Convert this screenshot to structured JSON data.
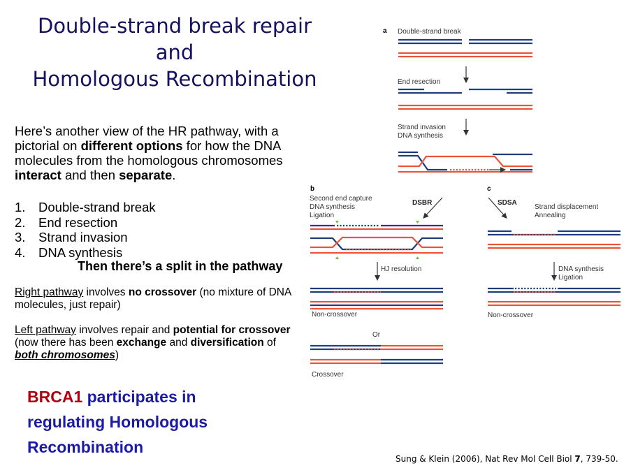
{
  "title_lines": [
    "Double-strand break repair",
    "and",
    "Homologous Recombination"
  ],
  "intro": {
    "t1": "Here’s another view of the HR pathway, with a pictorial on ",
    "b1": "different options",
    "t2": " for how the DNA molecules from the homologous chromosomes ",
    "b2": "interact",
    "t3": " and then ",
    "b3": "separate",
    "t4": "."
  },
  "steps": [
    {
      "num": "1.",
      "text": "Double-strand break"
    },
    {
      "num": "2.",
      "text": "End resection"
    },
    {
      "num": "3.",
      "text": "Strand invasion"
    },
    {
      "num": "4.",
      "text": "DNA synthesis"
    }
  ],
  "split_text": "Then there’s a split in the pathway",
  "right_para": {
    "u": "Right pathway",
    "t1": " involves ",
    "b1": "no crossover",
    "t2": " (no mixture of DNA molecules, just repair)"
  },
  "left_para": {
    "u": "Left pathway",
    "t1": " involves repair and ",
    "b1": "potential for crossover",
    "t2": " (now there has been ",
    "b2": "exchange",
    "t3": " and ",
    "b3": "diversification",
    "t4": " of ",
    "b4": "both chromosomes",
    "t5": ")"
  },
  "brca": {
    "red": "BRCA1",
    "rest": " participates in regulating Homologous Recombination"
  },
  "citation": {
    "pre": "Sung & Klein (2006), Nat Rev Mol Cell Biol ",
    "vol": "7",
    "post": ", 739-50."
  },
  "diagram": {
    "colors": {
      "blue": "#1f3d7a",
      "red": "#e8553a",
      "green": "#7ab648"
    },
    "panel_a": {
      "letter": "a",
      "dsb": "Double-strand break",
      "end_resection": "End resection",
      "invasion_1": "Strand invasion",
      "invasion_2": "DNA synthesis"
    },
    "panel_b": {
      "letter": "b",
      "capture_1": "Second end capture",
      "capture_2": "DNA synthesis",
      "capture_3": "Ligation",
      "dsbr": "DSBR",
      "hj": "HJ resolution",
      "noncrossover": "Non-crossover",
      "or": "Or",
      "crossover": "Crossover"
    },
    "panel_c": {
      "letter": "c",
      "sdsa": "SDSA",
      "displace_1": "Strand displacement",
      "displace_2": "Annealing",
      "synth_1": "DNA synthesis",
      "synth_2": "Ligation",
      "noncrossover": "Non-crossover"
    }
  }
}
